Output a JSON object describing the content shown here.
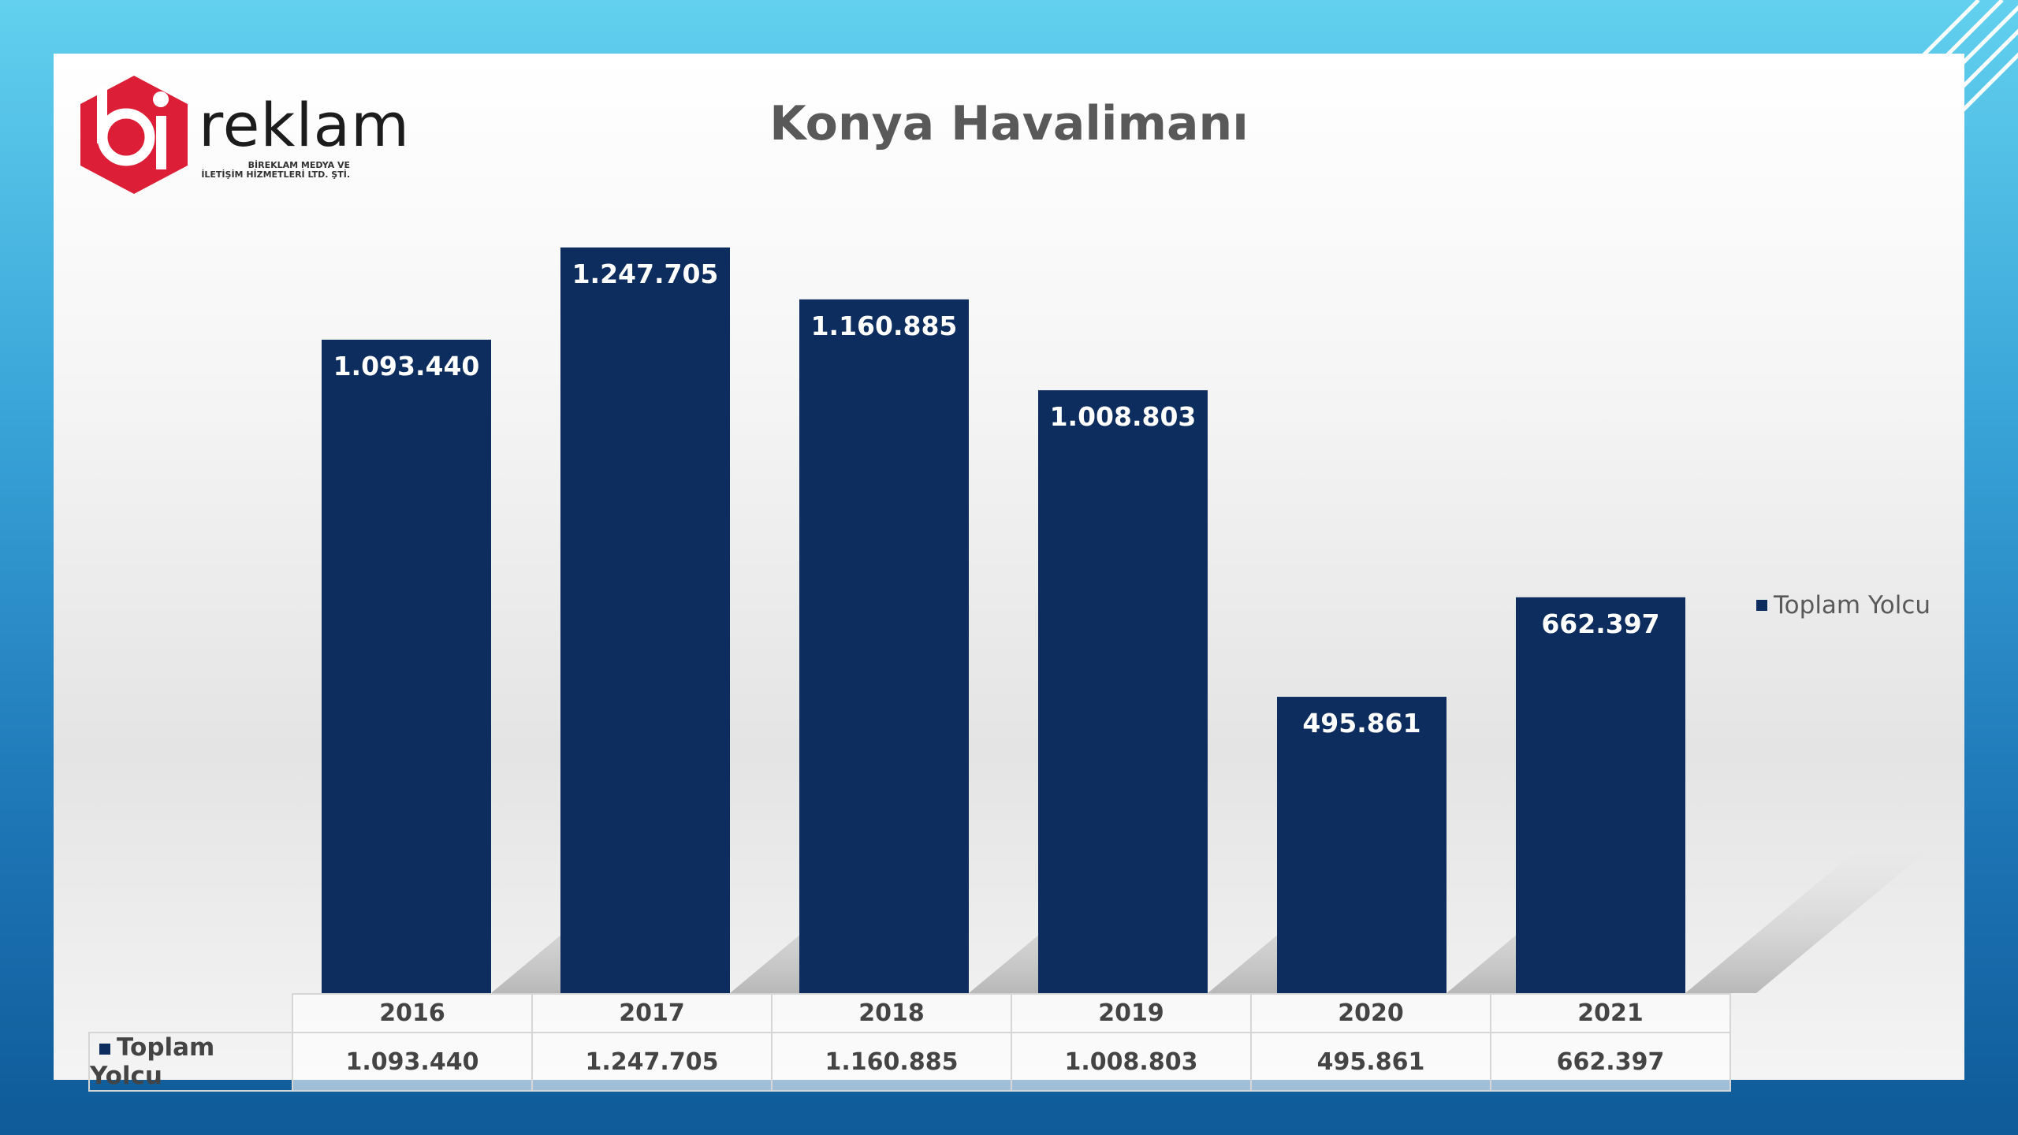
{
  "logo": {
    "wordmark": "reklam",
    "subtitle_line1": "BİREKLAM MEDYA VE",
    "subtitle_line2": "İLETİŞİM HİZMETLERİ LTD. ŞTİ."
  },
  "colors": {
    "bar": "#0d2d5e",
    "logo_red": "#dc1e36"
  },
  "chart_data": {
    "type": "bar",
    "title": "Konya Havalimanı",
    "categories": [
      "2016",
      "2017",
      "2018",
      "2019",
      "2020",
      "2021"
    ],
    "series": [
      {
        "name": "Toplam Yolcu",
        "values": [
          1093440,
          1247705,
          1160885,
          1008803,
          495861,
          662397
        ],
        "labels": [
          "1.093.440",
          "1.247.705",
          "1.160.885",
          "1.008.803",
          "495.861",
          "662.397"
        ]
      }
    ],
    "legend": {
      "position": "right",
      "label": "Toplam Yolcu"
    },
    "grid": false,
    "data_table": true
  }
}
